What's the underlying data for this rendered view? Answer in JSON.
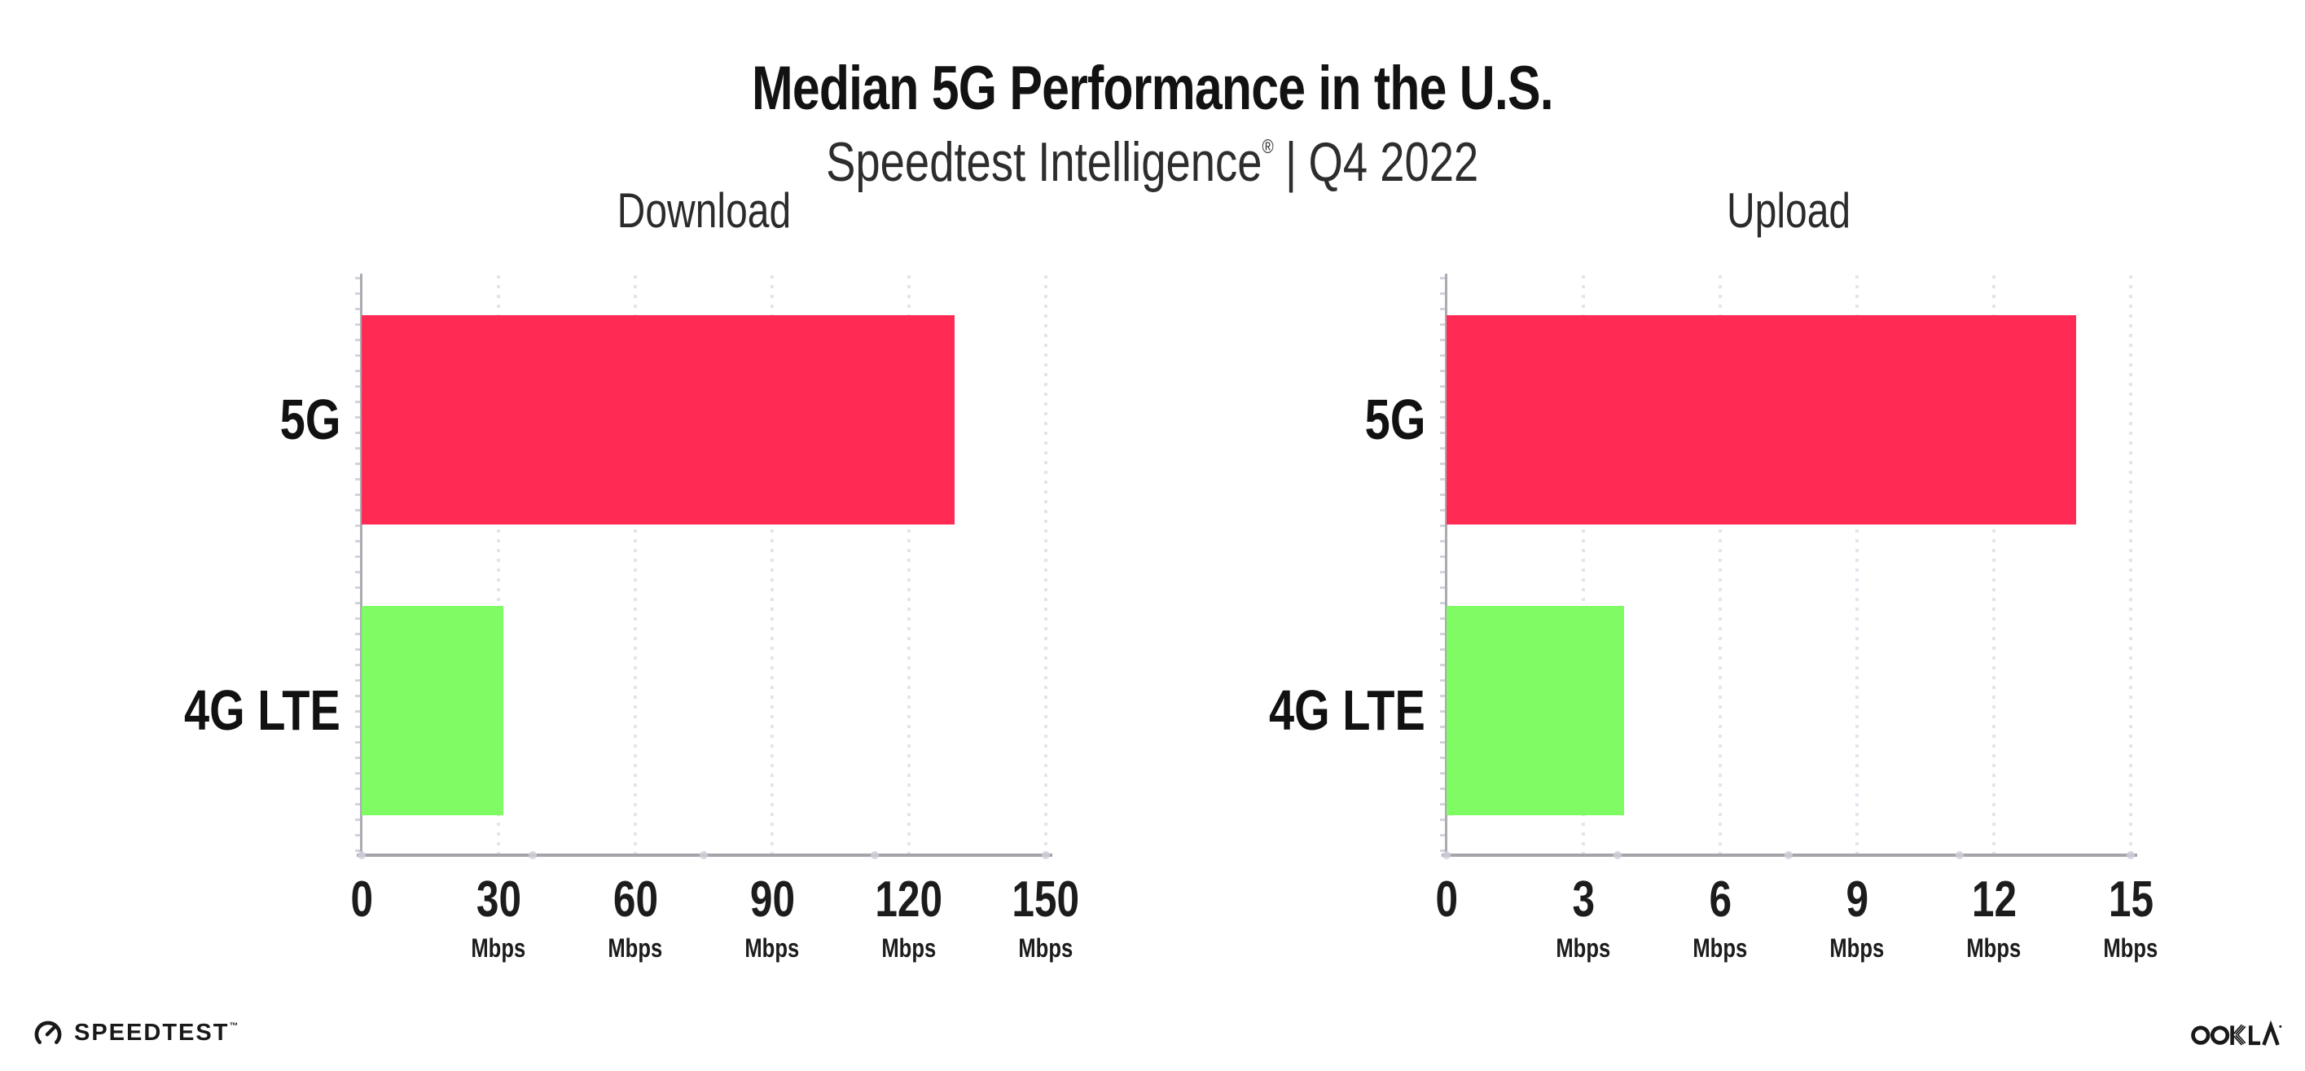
{
  "header": {
    "title": "Median 5G Performance in the U.S.",
    "subtitle_brand": "Speedtest Intelligence",
    "subtitle_reg": "®",
    "subtitle_sep": "|",
    "subtitle_period": "Q4 2022"
  },
  "chart_data": [
    {
      "type": "bar",
      "orientation": "horizontal",
      "title": "Download",
      "categories": [
        "5G",
        "4G LTE"
      ],
      "values": [
        130,
        31
      ],
      "unit": "Mbps",
      "xlim": [
        0,
        150
      ],
      "xticks": [
        0,
        30,
        60,
        90,
        120,
        150
      ],
      "tick_unit": "Mbps",
      "grid": "dotted-vertical-at-ticks",
      "legend": "none",
      "bar_colors": [
        "#FF2B54",
        "#7FFB63"
      ]
    },
    {
      "type": "bar",
      "orientation": "horizontal",
      "title": "Upload",
      "categories": [
        "5G",
        "4G LTE"
      ],
      "values": [
        13.8,
        3.9
      ],
      "unit": "Mbps",
      "xlim": [
        0,
        15
      ],
      "xticks": [
        0,
        3,
        6,
        9,
        12,
        15
      ],
      "tick_unit": "Mbps",
      "grid": "dotted-vertical-at-ticks",
      "legend": "none",
      "bar_colors": [
        "#FF2B54",
        "#7FFB63"
      ]
    }
  ],
  "footer": {
    "speedtest_label": "SPEEDTEST",
    "speedtest_tm": "™",
    "ookla_label": "OOKLA"
  },
  "colors": {
    "bar_5g": "#FF2B54",
    "bar_4g_lte": "#7FFB63",
    "axis_line": "#a4a4aa",
    "gridline_dots": "#e4e4ef",
    "background": "#ffffff",
    "text": "#1a1a1a"
  }
}
